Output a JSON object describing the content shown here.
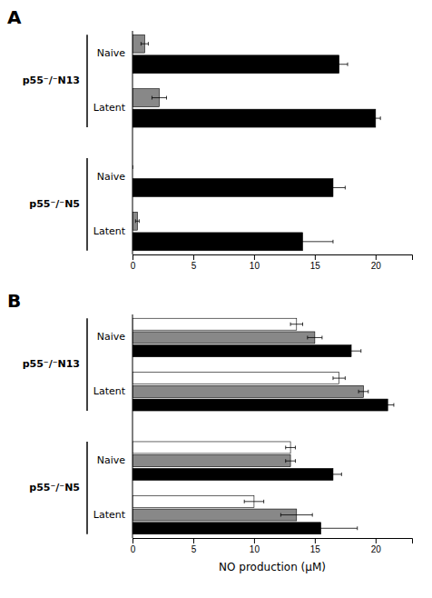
{
  "chart_data": [
    {
      "type": "bar",
      "orientation": "horizontal",
      "title": "A",
      "groups": [
        {
          "label": "p55⁻/⁻N13",
          "categories": [
            "Naive",
            "Latent"
          ]
        },
        {
          "label": "p55⁻/⁻N5",
          "categories": [
            "Naive",
            "Latent"
          ]
        }
      ],
      "series": [
        {
          "color": "#888888",
          "values": [
            1.0,
            2.2,
            0.0,
            0.4
          ],
          "errors": [
            0.3,
            0.6,
            0.0,
            0.15
          ]
        },
        {
          "color": "#000000",
          "values": [
            17.0,
            20.0,
            16.5,
            14.0
          ],
          "errors": [
            0.7,
            0.4,
            1.0,
            2.5
          ]
        }
      ],
      "xlim": [
        0,
        23
      ],
      "xticks": [
        0,
        5,
        10,
        15,
        20
      ]
    },
    {
      "type": "bar",
      "orientation": "horizontal",
      "title": "B",
      "xlabel": "NO production (µM)",
      "groups": [
        {
          "label": "p55⁻/⁻N13",
          "categories": [
            "Naive",
            "Latent"
          ]
        },
        {
          "label": "p55⁻/⁻N5",
          "categories": [
            "Naive",
            "Latent"
          ]
        }
      ],
      "series": [
        {
          "color": "#ffffff",
          "values": [
            13.5,
            17.0,
            13.0,
            10.0
          ],
          "errors": [
            0.5,
            0.5,
            0.4,
            0.8
          ]
        },
        {
          "color": "#888888",
          "values": [
            15.0,
            19.0,
            13.0,
            13.5
          ],
          "errors": [
            0.6,
            0.4,
            0.4,
            1.3
          ]
        },
        {
          "color": "#000000",
          "values": [
            18.0,
            21.0,
            16.5,
            15.5
          ],
          "errors": [
            0.8,
            0.5,
            0.7,
            3.0
          ]
        }
      ],
      "xlim": [
        0,
        23
      ],
      "xticks": [
        0,
        5,
        10,
        15,
        20
      ]
    }
  ]
}
